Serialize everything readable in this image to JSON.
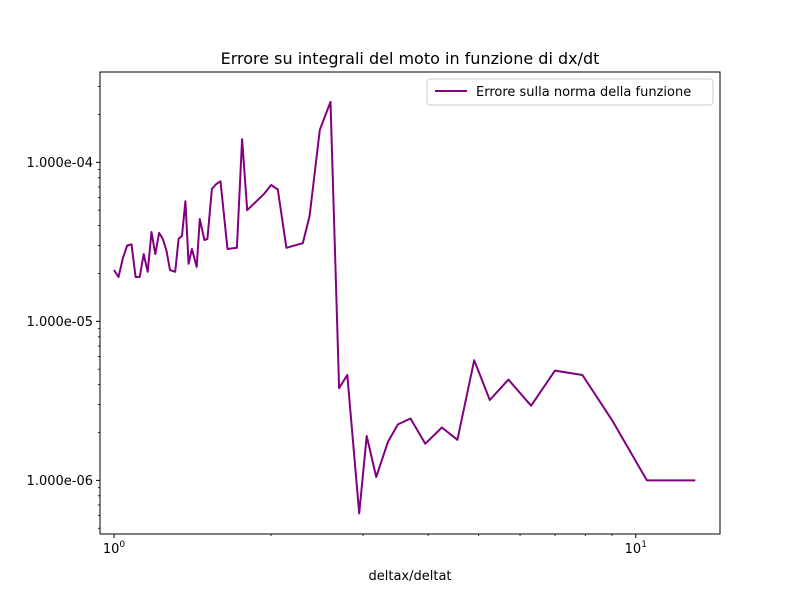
{
  "chart_data": {
    "type": "line",
    "title": "Errore su integrali del moto in funzione di dx/dt",
    "xlabel": "deltax/deltat",
    "ylabel": "",
    "x_scale": "log",
    "y_scale": "log",
    "xlim": [
      0.94,
      14.5
    ],
    "ylim": [
      4.6e-07,
      0.00037
    ],
    "x_ticks": [
      {
        "value": 1,
        "base": "10",
        "exp": "0"
      },
      {
        "value": 10,
        "base": "10",
        "exp": "1"
      }
    ],
    "y_ticks": [
      {
        "value": 1e-06,
        "label": "1.000e-06"
      },
      {
        "value": 1e-05,
        "label": "1.000e-05"
      },
      {
        "value": 0.0001,
        "label": "1.000e-04"
      }
    ],
    "grid": false,
    "legend_position": "upper right",
    "series": [
      {
        "name": "Errore sulla norma della funzione",
        "color": "#800080",
        "x": [
          1.0,
          1.02,
          1.04,
          1.06,
          1.08,
          1.1,
          1.12,
          1.14,
          1.16,
          1.18,
          1.2,
          1.22,
          1.24,
          1.26,
          1.28,
          1.31,
          1.33,
          1.35,
          1.37,
          1.39,
          1.41,
          1.44,
          1.46,
          1.49,
          1.51,
          1.54,
          1.57,
          1.6,
          1.65,
          1.72,
          1.76,
          1.8,
          1.94,
          2.0,
          2.06,
          2.14,
          2.3,
          2.37,
          2.48,
          2.6,
          2.7,
          2.8,
          2.95,
          3.05,
          3.18,
          3.35,
          3.5,
          3.7,
          3.95,
          4.25,
          4.55,
          4.9,
          5.25,
          5.7,
          6.3,
          7.0,
          7.9,
          9.0,
          10.5,
          13.0
        ],
        "y": [
          2.1e-05,
          1.9e-05,
          2.5e-05,
          3e-05,
          3.05e-05,
          1.9e-05,
          1.9e-05,
          2.65e-05,
          2.05e-05,
          3.65e-05,
          2.65e-05,
          3.6e-05,
          3.3e-05,
          2.8e-05,
          2.1e-05,
          2.05e-05,
          3.3e-05,
          3.45e-05,
          5.7e-05,
          2.3e-05,
          2.85e-05,
          2.2e-05,
          4.4e-05,
          3.25e-05,
          3.3e-05,
          6.8e-05,
          7.3e-05,
          7.6e-05,
          2.85e-05,
          2.9e-05,
          0.00014,
          5e-05,
          6.35e-05,
          7.2e-05,
          6.75e-05,
          2.9e-05,
          3.1e-05,
          4.6e-05,
          0.00016,
          0.00024,
          3.8e-06,
          4.6e-06,
          6.2e-07,
          1.9e-06,
          1.05e-06,
          1.75e-06,
          2.25e-06,
          2.45e-06,
          1.7e-06,
          2.15e-06,
          1.8e-06,
          5.7e-06,
          3.2e-06,
          4.3e-06,
          2.95e-06,
          4.9e-06,
          4.6e-06,
          2.4e-06,
          1e-06,
          1e-06
        ]
      }
    ]
  }
}
